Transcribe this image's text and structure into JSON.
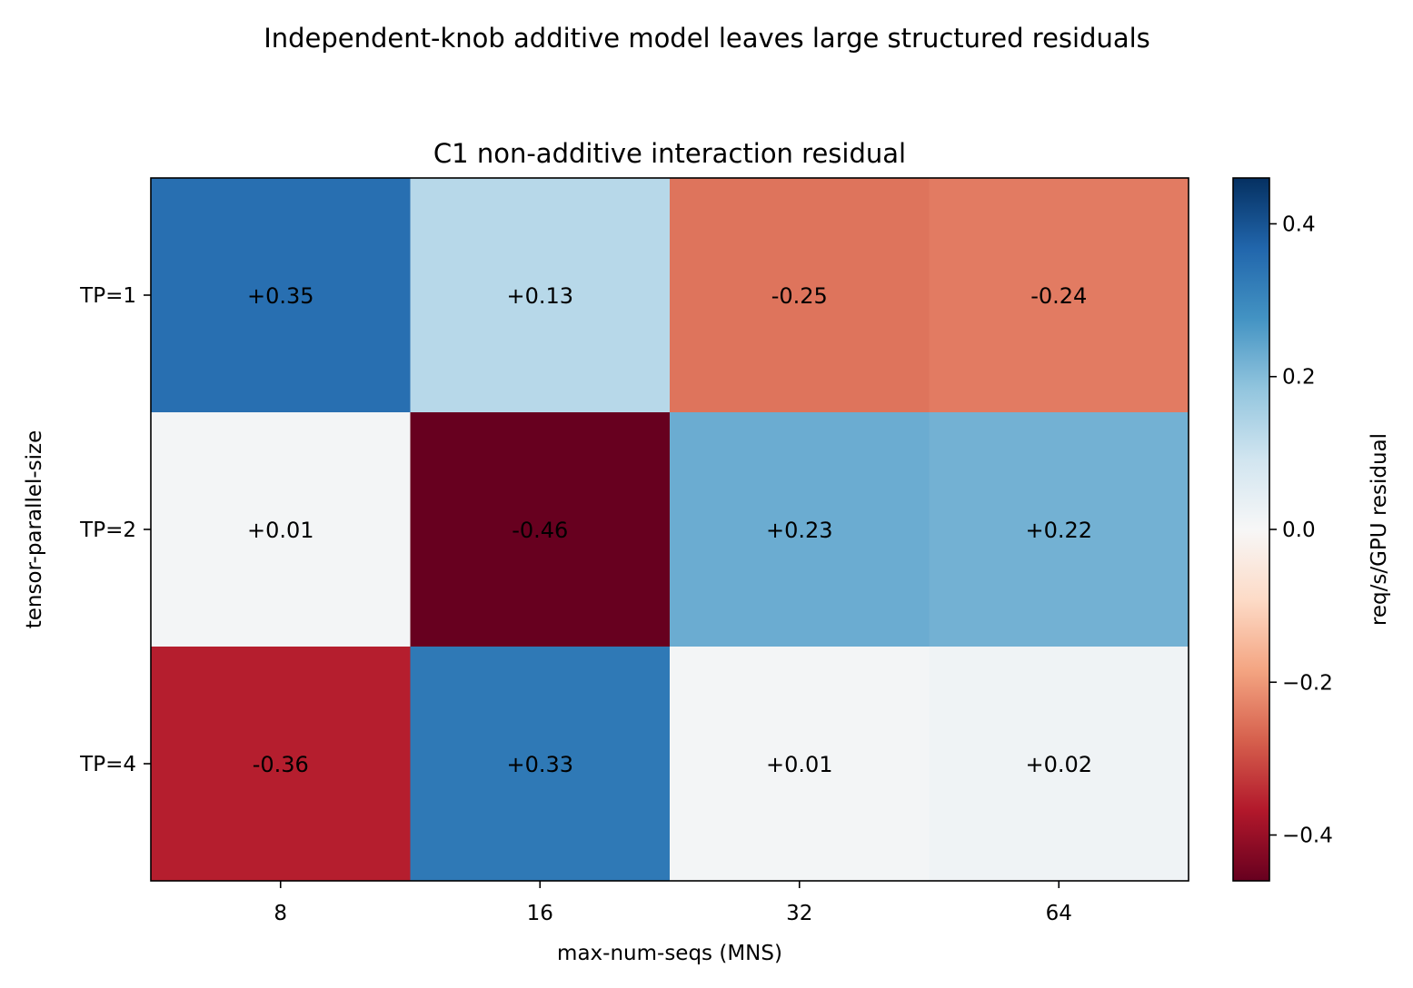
{
  "figure": {
    "suptitle": "Independent-knob additive model leaves large structured residuals"
  },
  "chart_data": {
    "type": "heatmap",
    "title": "C1 non-additive interaction residual",
    "xlabel": "max-num-seqs (MNS)",
    "ylabel": "tensor-parallel-size",
    "x_categories": [
      "8",
      "16",
      "32",
      "64"
    ],
    "y_categories": [
      "TP=1",
      "TP=2",
      "TP=4"
    ],
    "values": [
      [
        0.35,
        0.13,
        -0.25,
        -0.24
      ],
      [
        0.01,
        -0.46,
        0.23,
        0.22
      ],
      [
        -0.36,
        0.33,
        0.01,
        0.02
      ]
    ],
    "cell_labels": [
      [
        "+0.35",
        "+0.13",
        "-0.25",
        "-0.24"
      ],
      [
        "+0.01",
        "-0.46",
        "+0.23",
        "+0.22"
      ],
      [
        "-0.36",
        "+0.33",
        "+0.01",
        "+0.02"
      ]
    ],
    "colormap": "RdBu",
    "vmin": -0.46,
    "vmax": 0.46,
    "colorbar": {
      "label": "req/s/GPU residual",
      "ticks": [
        0.4,
        0.2,
        0.0,
        -0.2,
        -0.4
      ],
      "tick_labels": [
        "0.4",
        "0.2",
        "0.0",
        "−0.2",
        "−0.4"
      ]
    }
  }
}
